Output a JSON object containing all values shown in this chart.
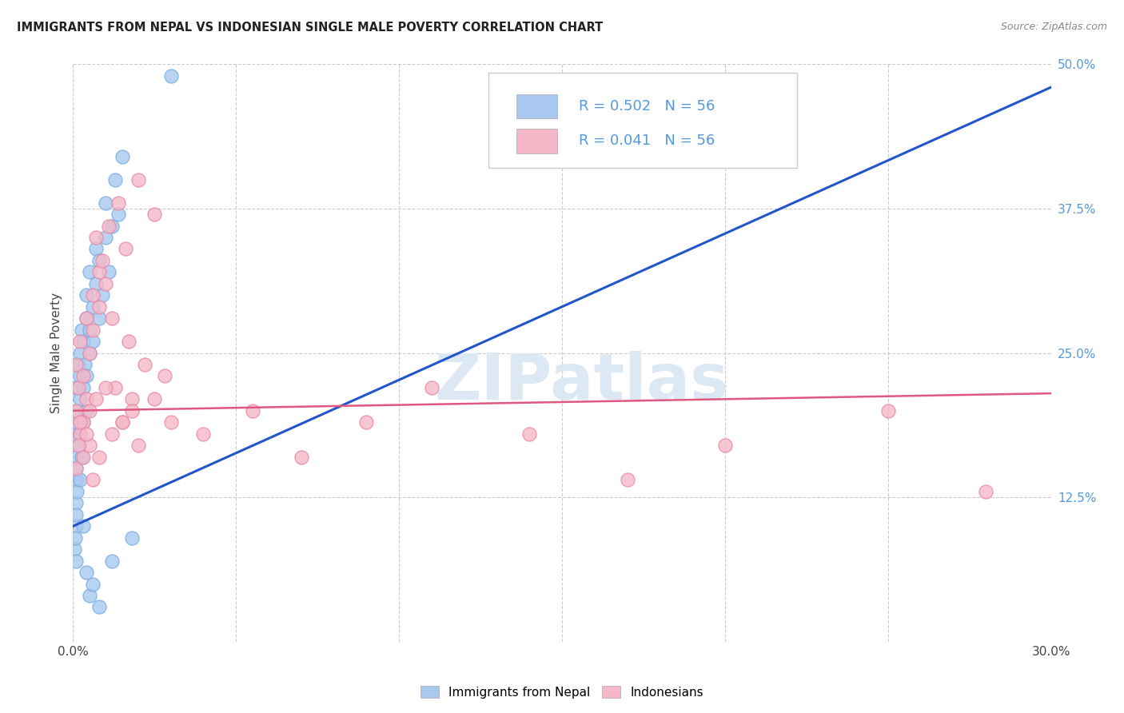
{
  "title": "IMMIGRANTS FROM NEPAL VS INDONESIAN SINGLE MALE POVERTY CORRELATION CHART",
  "source": "Source: ZipAtlas.com",
  "ylabel": "Single Male Poverty",
  "xlim": [
    0.0,
    0.3
  ],
  "ylim": [
    0.0,
    0.5
  ],
  "nepal_R": 0.502,
  "nepal_N": 56,
  "indonesian_R": 0.041,
  "indonesian_N": 56,
  "nepal_color": "#a8c8f0",
  "nepal_edge_color": "#7aaede",
  "nepal_line_color": "#2255cc",
  "indonesian_color": "#f5b8c8",
  "indonesian_edge_color": "#e888a8",
  "indonesian_line_color": "#e05880",
  "tick_label_color": "#5599dd",
  "background_color": "#ffffff",
  "grid_color": "#cccccc",
  "watermark_color": "#dde8f5",
  "nepal_x": [
    0.0005,
    0.0008,
    0.001,
    0.001,
    0.001,
    0.0012,
    0.0015,
    0.0015,
    0.0018,
    0.002,
    0.002,
    0.002,
    0.0022,
    0.0025,
    0.0025,
    0.003,
    0.003,
    0.003,
    0.0035,
    0.004,
    0.004,
    0.004,
    0.004,
    0.005,
    0.005,
    0.005,
    0.006,
    0.006,
    0.007,
    0.007,
    0.008,
    0.008,
    0.009,
    0.01,
    0.01,
    0.011,
    0.012,
    0.013,
    0.014,
    0.015,
    0.001,
    0.001,
    0.0005,
    0.0007,
    0.0008,
    0.001,
    0.0012,
    0.002,
    0.003,
    0.004,
    0.005,
    0.006,
    0.008,
    0.012,
    0.018,
    0.03
  ],
  "nepal_y": [
    0.18,
    0.15,
    0.16,
    0.19,
    0.22,
    0.14,
    0.2,
    0.24,
    0.17,
    0.21,
    0.25,
    0.18,
    0.23,
    0.16,
    0.27,
    0.22,
    0.19,
    0.26,
    0.24,
    0.2,
    0.28,
    0.23,
    0.3,
    0.25,
    0.27,
    0.32,
    0.26,
    0.29,
    0.31,
    0.34,
    0.28,
    0.33,
    0.3,
    0.35,
    0.38,
    0.32,
    0.36,
    0.4,
    0.37,
    0.42,
    0.1,
    0.12,
    0.08,
    0.09,
    0.11,
    0.07,
    0.13,
    0.14,
    0.1,
    0.06,
    0.04,
    0.05,
    0.03,
    0.07,
    0.09,
    0.49
  ],
  "indonesian_x": [
    0.001,
    0.001,
    0.0015,
    0.002,
    0.002,
    0.003,
    0.003,
    0.004,
    0.004,
    0.005,
    0.005,
    0.006,
    0.006,
    0.007,
    0.008,
    0.008,
    0.009,
    0.01,
    0.011,
    0.012,
    0.013,
    0.014,
    0.015,
    0.016,
    0.017,
    0.018,
    0.02,
    0.022,
    0.025,
    0.028,
    0.001,
    0.0015,
    0.002,
    0.003,
    0.004,
    0.005,
    0.006,
    0.007,
    0.008,
    0.01,
    0.012,
    0.015,
    0.018,
    0.02,
    0.025,
    0.03,
    0.04,
    0.055,
    0.07,
    0.09,
    0.11,
    0.14,
    0.17,
    0.2,
    0.25,
    0.28
  ],
  "indonesian_y": [
    0.2,
    0.24,
    0.22,
    0.18,
    0.26,
    0.19,
    0.23,
    0.21,
    0.28,
    0.17,
    0.25,
    0.3,
    0.27,
    0.35,
    0.29,
    0.32,
    0.33,
    0.31,
    0.36,
    0.28,
    0.22,
    0.38,
    0.19,
    0.34,
    0.26,
    0.21,
    0.4,
    0.24,
    0.37,
    0.23,
    0.15,
    0.17,
    0.19,
    0.16,
    0.18,
    0.2,
    0.14,
    0.21,
    0.16,
    0.22,
    0.18,
    0.19,
    0.2,
    0.17,
    0.21,
    0.19,
    0.18,
    0.2,
    0.16,
    0.19,
    0.22,
    0.18,
    0.14,
    0.17,
    0.2,
    0.13
  ],
  "nepal_line_x": [
    0.0,
    0.3
  ],
  "nepal_line_y": [
    0.1,
    0.48
  ],
  "indo_line_x": [
    0.0,
    0.3
  ],
  "indo_line_y": [
    0.2,
    0.215
  ]
}
